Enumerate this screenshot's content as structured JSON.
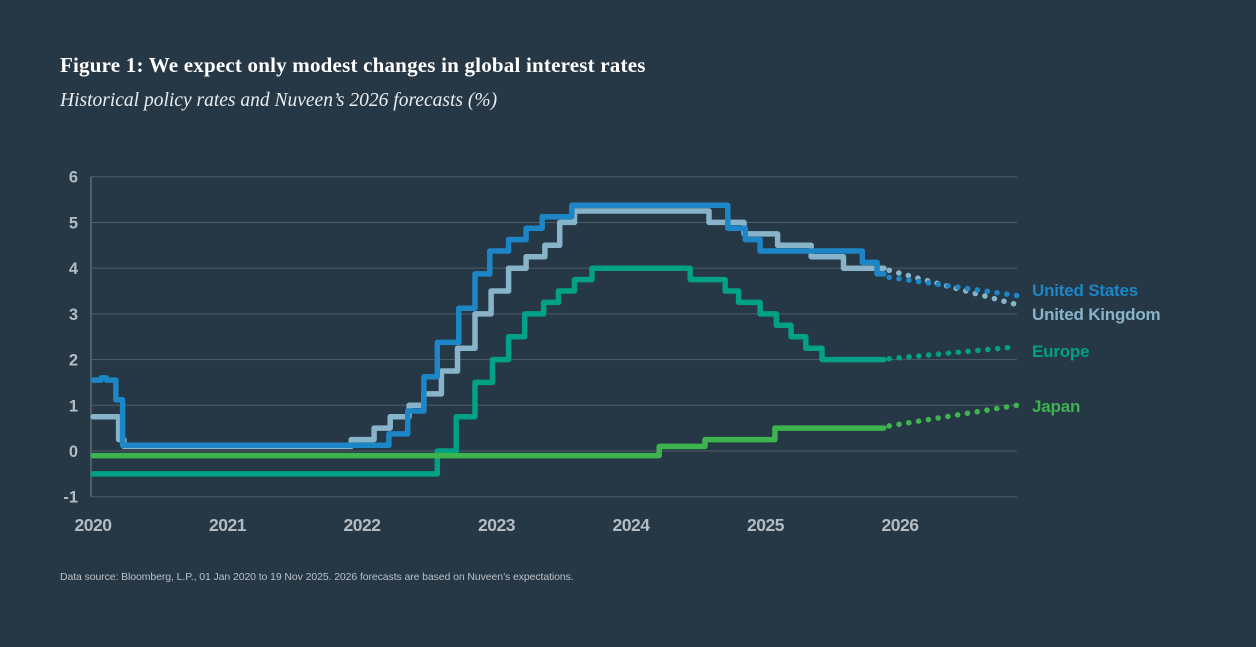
{
  "header": {
    "title": "Figure 1: We expect only modest changes in global interest rates",
    "subtitle": "Historical policy rates and Nuveen’s 2026 forecasts (%)"
  },
  "footer": {
    "source": "Data source: Bloomberg, L.P., 01 Jan 2020 to 19 Nov 2025. 2026 forecasts are based on Nuveen’s expectations."
  },
  "colors": {
    "background": "#263746",
    "title_text": "#ffffff",
    "subtitle_text": "#e9edef",
    "tick_text": "#b4bcc3",
    "gridline": "#4d5d68",
    "axis_line": "#6b7982",
    "united_states": "#1d86c6",
    "united_kingdom": "#88b4ca",
    "europe": "#00a184",
    "japan": "#3db44d"
  },
  "chart_data": {
    "type": "line",
    "step": true,
    "title": "Figure 1: We expect only modest changes in global interest rates",
    "subtitle": "Historical policy rates and Nuveen’s 2026 forecasts (%)",
    "x_axis": {
      "ticks": [
        2020,
        2021,
        2022,
        2023,
        2024,
        2025,
        2026
      ],
      "range": [
        2019.97,
        2026.87
      ],
      "grid": false
    },
    "y_axis": {
      "ticks": [
        6,
        5,
        4,
        3,
        2,
        1,
        0,
        -1
      ],
      "range": [
        -1,
        6
      ],
      "grid": true
    },
    "forecast_period": "2026 (dotted)",
    "series": [
      {
        "name": "United Kingdom",
        "color": "#88b4ca",
        "history": [
          [
            2020.0,
            0.75
          ],
          [
            2020.19,
            0.25
          ],
          [
            2020.23,
            0.1
          ],
          [
            2021.92,
            0.25
          ],
          [
            2022.09,
            0.5
          ],
          [
            2022.21,
            0.75
          ],
          [
            2022.35,
            1.0
          ],
          [
            2022.46,
            1.25
          ],
          [
            2022.59,
            1.75
          ],
          [
            2022.71,
            2.25
          ],
          [
            2022.84,
            3.0
          ],
          [
            2022.96,
            3.5
          ],
          [
            2023.09,
            4.0
          ],
          [
            2023.22,
            4.25
          ],
          [
            2023.36,
            4.5
          ],
          [
            2023.47,
            5.0
          ],
          [
            2023.58,
            5.25
          ],
          [
            2024.58,
            5.0
          ],
          [
            2024.84,
            4.75
          ],
          [
            2025.09,
            4.5
          ],
          [
            2025.34,
            4.25
          ],
          [
            2025.58,
            4.0
          ],
          [
            2025.88,
            4.0
          ]
        ],
        "forecast": [
          [
            2025.92,
            3.95
          ],
          [
            2026.87,
            3.2
          ]
        ]
      },
      {
        "name": "United States",
        "color": "#1d86c6",
        "history": [
          [
            2020.0,
            1.55
          ],
          [
            2020.06,
            1.6
          ],
          [
            2020.1,
            1.55
          ],
          [
            2020.17,
            1.12
          ],
          [
            2020.22,
            0.125
          ],
          [
            2022.2,
            0.375
          ],
          [
            2022.34,
            0.875
          ],
          [
            2022.46,
            1.625
          ],
          [
            2022.56,
            2.375
          ],
          [
            2022.72,
            3.125
          ],
          [
            2022.84,
            3.875
          ],
          [
            2022.95,
            4.375
          ],
          [
            2023.09,
            4.625
          ],
          [
            2023.22,
            4.875
          ],
          [
            2023.34,
            5.125
          ],
          [
            2023.56,
            5.375
          ],
          [
            2024.72,
            4.875
          ],
          [
            2024.85,
            4.625
          ],
          [
            2024.96,
            4.375
          ],
          [
            2025.72,
            4.125
          ],
          [
            2025.83,
            3.875
          ],
          [
            2025.88,
            3.875
          ]
        ],
        "forecast": [
          [
            2025.92,
            3.8
          ],
          [
            2026.87,
            3.4
          ]
        ]
      },
      {
        "name": "Europe",
        "color": "#00a184",
        "history": [
          [
            2020.0,
            -0.5
          ],
          [
            2022.56,
            0.0
          ],
          [
            2022.7,
            0.75
          ],
          [
            2022.84,
            1.5
          ],
          [
            2022.97,
            2.0
          ],
          [
            2023.09,
            2.5
          ],
          [
            2023.21,
            3.0
          ],
          [
            2023.35,
            3.25
          ],
          [
            2023.46,
            3.5
          ],
          [
            2023.58,
            3.75
          ],
          [
            2023.71,
            4.0
          ],
          [
            2024.44,
            3.75
          ],
          [
            2024.7,
            3.5
          ],
          [
            2024.8,
            3.25
          ],
          [
            2024.96,
            3.0
          ],
          [
            2025.08,
            2.75
          ],
          [
            2025.19,
            2.5
          ],
          [
            2025.3,
            2.25
          ],
          [
            2025.42,
            2.0
          ],
          [
            2025.88,
            2.0
          ]
        ],
        "forecast": [
          [
            2025.92,
            2.02
          ],
          [
            2026.87,
            2.28
          ]
        ]
      },
      {
        "name": "Japan",
        "color": "#3db44d",
        "history": [
          [
            2020.0,
            -0.1
          ],
          [
            2024.21,
            0.1
          ],
          [
            2024.55,
            0.25
          ],
          [
            2025.07,
            0.5
          ],
          [
            2025.88,
            0.5
          ]
        ],
        "forecast": [
          [
            2025.92,
            0.55
          ],
          [
            2026.87,
            1.0
          ]
        ]
      }
    ],
    "legend": [
      {
        "label": "United States",
        "color": "#1d86c6"
      },
      {
        "label": "United Kingdom",
        "color": "#88b4ca"
      },
      {
        "label": "Europe",
        "color": "#00a184"
      },
      {
        "label": "Japan",
        "color": "#3db44d"
      }
    ]
  }
}
